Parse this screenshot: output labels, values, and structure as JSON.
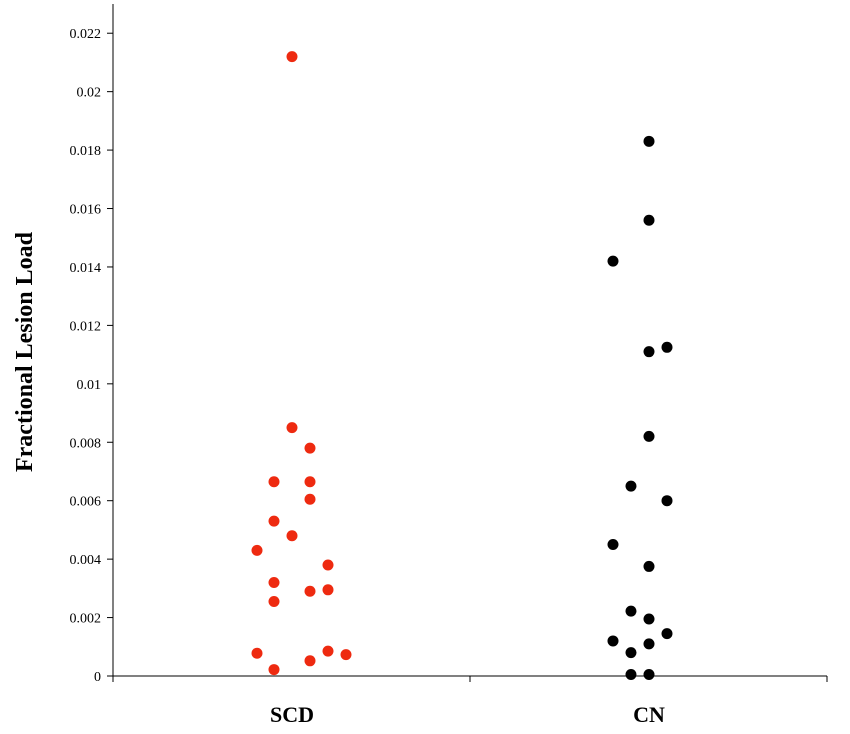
{
  "chart_data": {
    "type": "scatter",
    "title": "",
    "xlabel": "",
    "ylabel": "Fractional Lesion Load",
    "categories": [
      "SCD",
      "CN"
    ],
    "ylim": [
      0,
      0.023
    ],
    "yticks": [
      0,
      0.002,
      0.004,
      0.006,
      0.008,
      0.01,
      0.012,
      0.014,
      0.016,
      0.018,
      0.02,
      0.022
    ],
    "ytick_labels": [
      "0",
      "0.002",
      "0.004",
      "0.006",
      "0.008",
      "0.01",
      "0.012",
      "0.014",
      "0.016",
      "0.018",
      "0.02",
      "0.022"
    ],
    "grid": false,
    "legend": "none",
    "series": [
      {
        "category": "SCD",
        "color": "#ee2a10",
        "values": [
          0.0212,
          0.0085,
          0.0078,
          0.00665,
          0.00665,
          0.00605,
          0.0053,
          0.0048,
          0.0043,
          0.0038,
          0.0032,
          0.0029,
          0.00295,
          0.00255,
          0.00085,
          0.00078,
          0.00073,
          0.00052,
          0.00022
        ]
      },
      {
        "category": "CN",
        "color": "#000000",
        "values": [
          0.0183,
          0.0156,
          0.0142,
          0.01125,
          0.0111,
          0.0082,
          0.0065,
          0.006,
          0.0045,
          0.00375,
          0.00222,
          0.00195,
          0.00145,
          0.0012,
          0.0011,
          0.0008,
          5e-05,
          5e-05
        ]
      }
    ]
  }
}
